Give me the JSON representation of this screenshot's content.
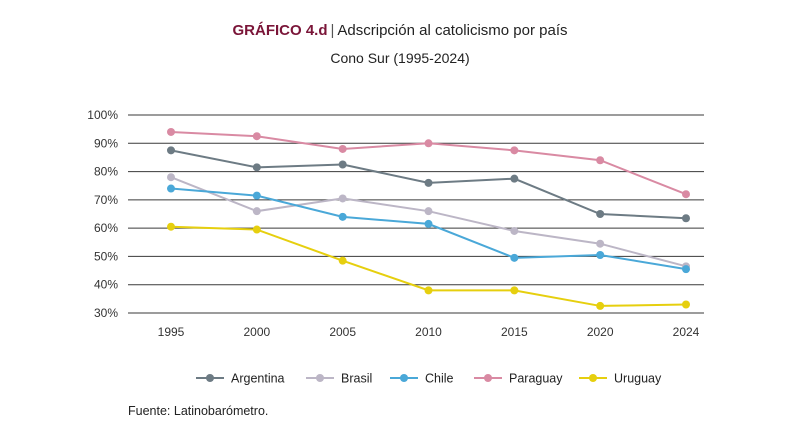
{
  "header": {
    "label": "GRÁFICO 4.d",
    "separator": "|",
    "title": "Adscripción al catolicismo por país",
    "subtitle": "Cono Sur (1995-2024)"
  },
  "source": "Fuente: Latinobarómetro.",
  "chart_data": {
    "type": "line",
    "title": "Adscripción al catolicismo por país",
    "subtitle": "Cono Sur (1995-2024)",
    "xlabel": "",
    "ylabel": "",
    "categories": [
      "1995",
      "2000",
      "2005",
      "2010",
      "2015",
      "2020",
      "2024"
    ],
    "ylim": [
      30,
      100
    ],
    "yticks": [
      30,
      40,
      50,
      60,
      70,
      80,
      90,
      100
    ],
    "ytick_labels": [
      "30%",
      "40%",
      "50%",
      "60%",
      "70%",
      "80%",
      "90%",
      "100%"
    ],
    "grid": "horizontal",
    "legend_position": "bottom",
    "series": [
      {
        "name": "Argentina",
        "color": "#6d7b84",
        "values": [
          87.5,
          81.5,
          82.5,
          76,
          77.5,
          65,
          63.5
        ]
      },
      {
        "name": "Brasil",
        "color": "#bcb6c6",
        "values": [
          78,
          66,
          70.5,
          66,
          59,
          54.5,
          46.5
        ]
      },
      {
        "name": "Chile",
        "color": "#4aa8d8",
        "values": [
          74,
          71.5,
          64,
          61.5,
          49.5,
          50.5,
          45.5
        ]
      },
      {
        "name": "Paraguay",
        "color": "#d98aa3",
        "values": [
          94,
          92.5,
          88,
          90,
          87.5,
          84,
          72
        ]
      },
      {
        "name": "Uruguay",
        "color": "#e6cf0e",
        "values": [
          60.5,
          59.5,
          48.5,
          38,
          38,
          32.5,
          33
        ]
      }
    ]
  }
}
